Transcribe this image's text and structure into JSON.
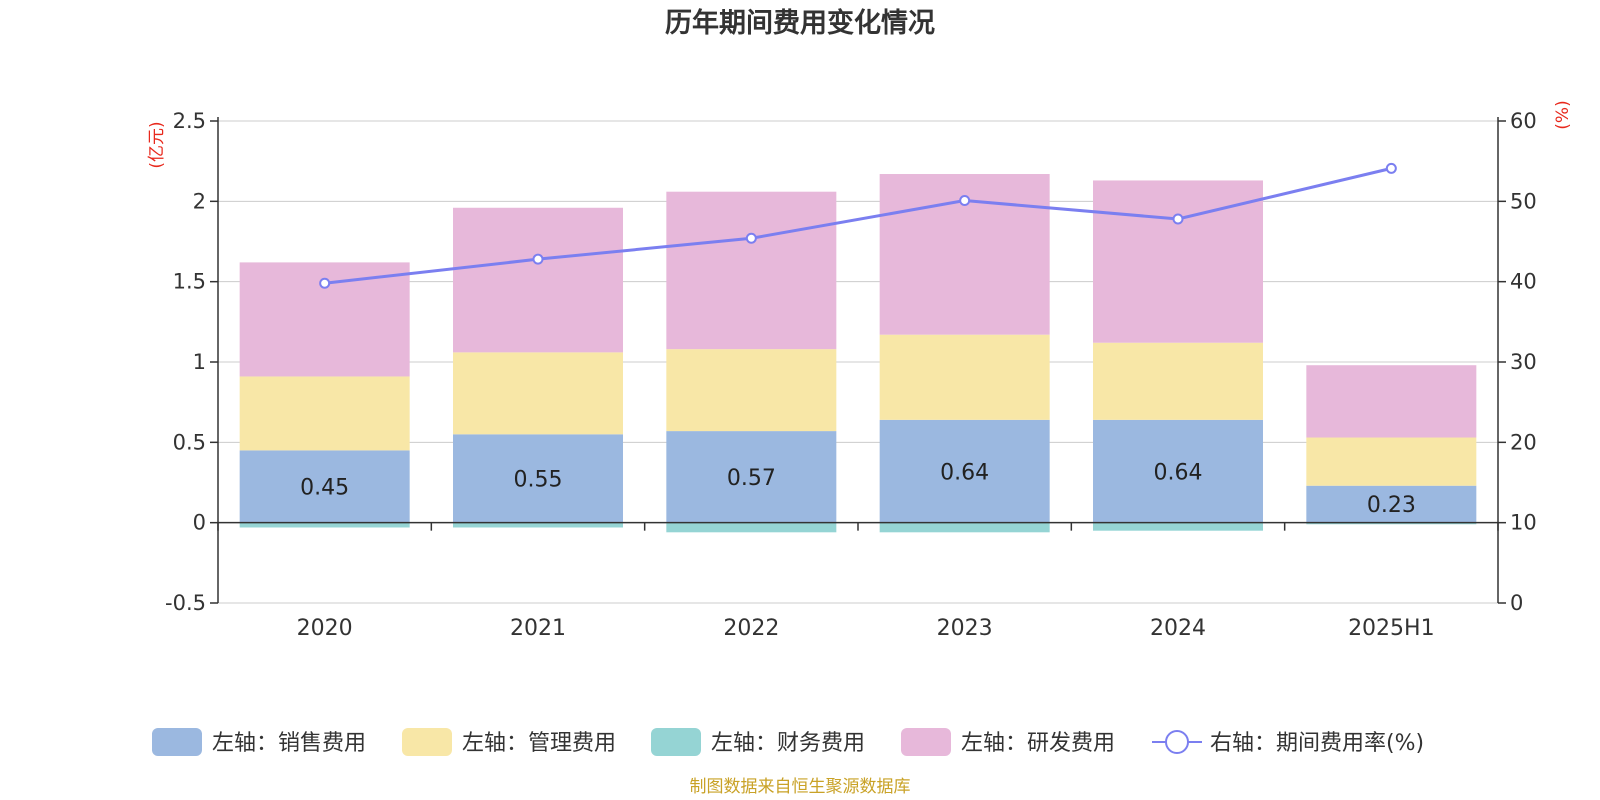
{
  "chart_data": {
    "type": "bar",
    "title": "历年期间费用变化情况",
    "categories": [
      "2020",
      "2021",
      "2022",
      "2023",
      "2024",
      "2025H1"
    ],
    "y_left": {
      "unit": "(亿元)",
      "ylim": [
        -0.5,
        2.5
      ],
      "ticks": [
        "-0.5",
        "0",
        "0.5",
        "1",
        "1.5",
        "2",
        "2.5"
      ]
    },
    "y_right": {
      "unit": "(%)",
      "ylim": [
        0,
        60
      ],
      "ticks": [
        "0",
        "10",
        "20",
        "30",
        "40",
        "50",
        "60"
      ]
    },
    "series": [
      {
        "name": "左轴：销售费用",
        "type": "bar",
        "axis": "left",
        "color": "#9bb8e0",
        "values": [
          0.45,
          0.55,
          0.57,
          0.64,
          0.64,
          0.23
        ],
        "labels": [
          "0.45",
          "0.55",
          "0.57",
          "0.64",
          "0.64",
          "0.23"
        ]
      },
      {
        "name": "左轴：管理费用",
        "type": "bar",
        "axis": "left",
        "color": "#f8e7a7",
        "values": [
          0.46,
          0.51,
          0.51,
          0.53,
          0.48,
          0.3
        ]
      },
      {
        "name": "左轴：财务费用",
        "type": "bar",
        "axis": "left",
        "color": "#95d4d4",
        "values": [
          -0.03,
          -0.03,
          -0.06,
          -0.06,
          -0.05,
          -0.01
        ]
      },
      {
        "name": "左轴：研发费用",
        "type": "bar",
        "axis": "left",
        "color": "#e7b8da",
        "values": [
          0.71,
          0.9,
          0.98,
          1.0,
          1.01,
          0.45
        ]
      },
      {
        "name": "右轴：期间费用率(%)",
        "type": "line",
        "axis": "right",
        "color": "#7b7ff0",
        "values": [
          39.8,
          42.8,
          45.4,
          50.1,
          47.8,
          54.1
        ]
      }
    ],
    "grid": true,
    "legend_position": "bottom",
    "source_note": "制图数据来自恒生聚源数据库"
  }
}
